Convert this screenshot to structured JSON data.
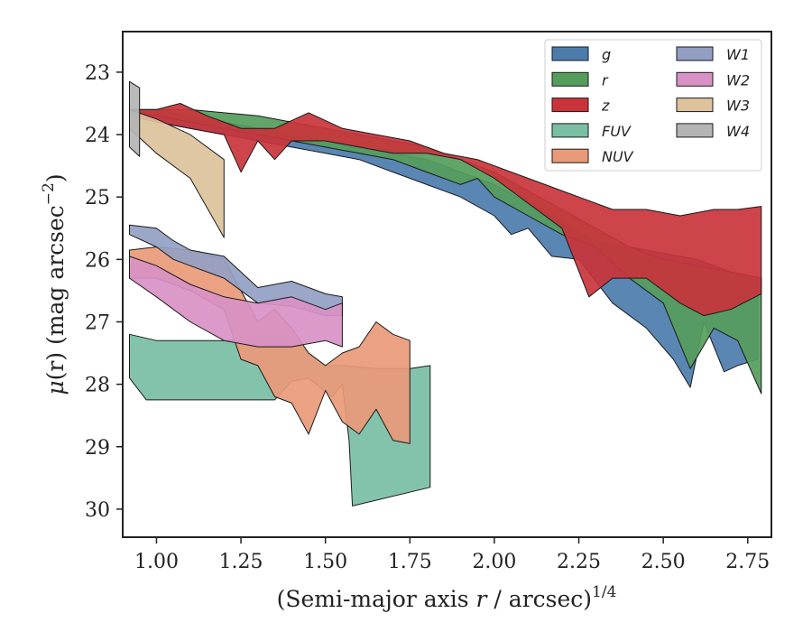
{
  "chart_data": {
    "type": "area",
    "xlabel": "(Semi-major axis r / arcsec)",
    "xlabel_main": "(Semi-major axis ",
    "xlabel_var": "r",
    "xlabel_rest": " / arcsec)",
    "xlabel_sup": "1/4",
    "ylabel_mu": "μ",
    "ylabel_paren_r": "(r) (mag arcsec",
    "ylabel_sup": "−2",
    "ylabel_close": ")",
    "xlim": [
      0.9,
      2.82
    ],
    "ylim": [
      30.45,
      22.35
    ],
    "y_inverted": true,
    "xticks": [
      1.0,
      1.25,
      1.5,
      1.75,
      2.0,
      2.25,
      2.5,
      2.75
    ],
    "xtick_labels": [
      "1.00",
      "1.25",
      "1.50",
      "1.75",
      "2.00",
      "2.25",
      "2.50",
      "2.75"
    ],
    "yticks": [
      23,
      24,
      25,
      26,
      27,
      28,
      29,
      30
    ],
    "ytick_labels": [
      "23",
      "24",
      "25",
      "26",
      "27",
      "28",
      "29",
      "30"
    ],
    "legend_position": "top-right",
    "legend_columns": 2,
    "series": [
      {
        "name": "g",
        "color": "#4c7cac",
        "upper": [
          [
            0.92,
            23.6
          ],
          [
            1.0,
            23.6
          ],
          [
            1.1,
            23.7
          ],
          [
            1.2,
            23.8
          ],
          [
            1.3,
            23.9
          ],
          [
            1.4,
            24.0
          ],
          [
            1.5,
            24.1
          ],
          [
            1.6,
            24.2
          ],
          [
            1.7,
            24.3
          ],
          [
            1.8,
            24.4
          ],
          [
            1.9,
            24.6
          ],
          [
            2.0,
            24.8
          ],
          [
            2.1,
            25.1
          ],
          [
            2.2,
            25.4
          ],
          [
            2.3,
            25.7
          ],
          [
            2.4,
            25.8
          ],
          [
            2.5,
            25.9
          ],
          [
            2.6,
            26.0
          ],
          [
            2.7,
            26.2
          ],
          [
            2.78,
            26.3
          ]
        ],
        "lower": [
          [
            0.92,
            23.7
          ],
          [
            1.0,
            23.8
          ],
          [
            1.1,
            23.9
          ],
          [
            1.2,
            24.0
          ],
          [
            1.3,
            24.1
          ],
          [
            1.4,
            24.2
          ],
          [
            1.5,
            24.3
          ],
          [
            1.6,
            24.4
          ],
          [
            1.7,
            24.6
          ],
          [
            1.8,
            24.8
          ],
          [
            1.9,
            25.0
          ],
          [
            2.0,
            25.3
          ],
          [
            2.05,
            25.6
          ],
          [
            2.1,
            25.5
          ],
          [
            2.17,
            25.95
          ],
          [
            2.25,
            26.0
          ],
          [
            2.35,
            26.7
          ],
          [
            2.45,
            27.1
          ],
          [
            2.53,
            27.6
          ],
          [
            2.58,
            28.05
          ],
          [
            2.62,
            27.0
          ],
          [
            2.68,
            27.8
          ],
          [
            2.72,
            27.7
          ],
          [
            2.78,
            27.6
          ]
        ]
      },
      {
        "name": "r",
        "color": "#559d5c",
        "upper": [
          [
            0.92,
            23.6
          ],
          [
            1.0,
            23.6
          ],
          [
            1.1,
            23.6
          ],
          [
            1.2,
            23.65
          ],
          [
            1.3,
            23.7
          ],
          [
            1.4,
            23.8
          ],
          [
            1.5,
            23.9
          ],
          [
            1.6,
            24.0
          ],
          [
            1.7,
            24.1
          ],
          [
            1.8,
            24.2
          ],
          [
            1.9,
            24.4
          ],
          [
            2.0,
            24.6
          ],
          [
            2.1,
            24.9
          ],
          [
            2.2,
            25.2
          ],
          [
            2.3,
            25.5
          ],
          [
            2.4,
            25.8
          ],
          [
            2.5,
            26.0
          ],
          [
            2.6,
            26.1
          ],
          [
            2.7,
            26.2
          ],
          [
            2.79,
            26.3
          ]
        ],
        "lower": [
          [
            0.92,
            23.65
          ],
          [
            1.0,
            23.7
          ],
          [
            1.1,
            23.8
          ],
          [
            1.2,
            23.9
          ],
          [
            1.3,
            24.0
          ],
          [
            1.4,
            24.1
          ],
          [
            1.5,
            24.2
          ],
          [
            1.6,
            24.3
          ],
          [
            1.7,
            24.4
          ],
          [
            1.8,
            24.6
          ],
          [
            1.9,
            24.8
          ],
          [
            1.95,
            24.7
          ],
          [
            2.0,
            25.0
          ],
          [
            2.1,
            25.3
          ],
          [
            2.2,
            25.6
          ],
          [
            2.3,
            25.8
          ],
          [
            2.4,
            26.3
          ],
          [
            2.5,
            26.7
          ],
          [
            2.58,
            27.75
          ],
          [
            2.65,
            27.1
          ],
          [
            2.72,
            27.3
          ],
          [
            2.79,
            28.15
          ]
        ]
      },
      {
        "name": "z",
        "color": "#c9343b",
        "upper": [
          [
            0.92,
            23.6
          ],
          [
            1.0,
            23.6
          ],
          [
            1.07,
            23.5
          ],
          [
            1.15,
            23.7
          ],
          [
            1.25,
            23.9
          ],
          [
            1.35,
            23.9
          ],
          [
            1.45,
            23.65
          ],
          [
            1.55,
            23.9
          ],
          [
            1.65,
            24.0
          ],
          [
            1.75,
            24.1
          ],
          [
            1.85,
            24.3
          ],
          [
            1.95,
            24.4
          ],
          [
            2.05,
            24.6
          ],
          [
            2.15,
            24.8
          ],
          [
            2.25,
            25.0
          ],
          [
            2.35,
            25.2
          ],
          [
            2.45,
            25.2
          ],
          [
            2.55,
            25.3
          ],
          [
            2.65,
            25.2
          ],
          [
            2.72,
            25.2
          ],
          [
            2.79,
            25.15
          ]
        ],
        "lower": [
          [
            0.92,
            23.7
          ],
          [
            1.0,
            23.8
          ],
          [
            1.1,
            23.9
          ],
          [
            1.2,
            24.0
          ],
          [
            1.25,
            24.6
          ],
          [
            1.3,
            24.1
          ],
          [
            1.35,
            24.4
          ],
          [
            1.4,
            24.1
          ],
          [
            1.5,
            24.1
          ],
          [
            1.6,
            24.2
          ],
          [
            1.7,
            24.3
          ],
          [
            1.8,
            24.3
          ],
          [
            1.9,
            24.4
          ],
          [
            2.0,
            24.7
          ],
          [
            2.1,
            25.1
          ],
          [
            2.2,
            25.5
          ],
          [
            2.28,
            26.6
          ],
          [
            2.35,
            26.3
          ],
          [
            2.45,
            26.3
          ],
          [
            2.55,
            26.7
          ],
          [
            2.62,
            26.9
          ],
          [
            2.7,
            26.8
          ],
          [
            2.79,
            26.55
          ]
        ]
      },
      {
        "name": "FUV",
        "color": "#7abea4",
        "upper": [
          [
            0.92,
            27.2
          ],
          [
            1.0,
            27.3
          ],
          [
            1.2,
            27.3
          ],
          [
            1.3,
            27.25
          ],
          [
            1.4,
            27.25
          ],
          [
            1.45,
            27.5
          ],
          [
            1.5,
            27.7
          ],
          [
            1.55,
            27.7
          ],
          [
            1.65,
            27.75
          ],
          [
            1.75,
            27.75
          ],
          [
            1.81,
            27.7
          ]
        ],
        "lower": [
          [
            0.92,
            27.9
          ],
          [
            0.97,
            28.25
          ],
          [
            1.2,
            28.25
          ],
          [
            1.35,
            28.25
          ],
          [
            1.4,
            27.95
          ],
          [
            1.45,
            27.9
          ],
          [
            1.52,
            28.2
          ],
          [
            1.55,
            28.0
          ],
          [
            1.57,
            28.9
          ],
          [
            1.58,
            29.95
          ],
          [
            1.81,
            29.65
          ]
        ]
      },
      {
        "name": "NUV",
        "color": "#e99a78",
        "upper": [
          [
            0.92,
            25.85
          ],
          [
            1.0,
            25.8
          ],
          [
            1.1,
            25.85
          ],
          [
            1.2,
            26.0
          ],
          [
            1.25,
            26.5
          ],
          [
            1.3,
            27.0
          ],
          [
            1.35,
            26.8
          ],
          [
            1.4,
            27.1
          ],
          [
            1.45,
            27.5
          ],
          [
            1.5,
            27.7
          ],
          [
            1.55,
            27.5
          ],
          [
            1.6,
            27.4
          ],
          [
            1.65,
            27.0
          ],
          [
            1.7,
            27.2
          ],
          [
            1.75,
            27.3
          ]
        ],
        "lower": [
          [
            0.92,
            26.3
          ],
          [
            1.0,
            26.3
          ],
          [
            1.1,
            26.5
          ],
          [
            1.2,
            26.8
          ],
          [
            1.25,
            27.6
          ],
          [
            1.3,
            27.7
          ],
          [
            1.35,
            28.2
          ],
          [
            1.4,
            28.3
          ],
          [
            1.45,
            28.8
          ],
          [
            1.5,
            28.1
          ],
          [
            1.55,
            28.6
          ],
          [
            1.6,
            28.8
          ],
          [
            1.65,
            28.4
          ],
          [
            1.7,
            28.9
          ],
          [
            1.75,
            28.95
          ]
        ]
      },
      {
        "name": "W1",
        "color": "#929fc3",
        "upper": [
          [
            0.92,
            25.45
          ],
          [
            1.0,
            25.5
          ],
          [
            1.05,
            25.7
          ],
          [
            1.1,
            25.85
          ],
          [
            1.2,
            25.95
          ],
          [
            1.3,
            26.45
          ],
          [
            1.4,
            26.35
          ],
          [
            1.5,
            26.55
          ],
          [
            1.55,
            26.6
          ]
        ],
        "lower": [
          [
            0.92,
            25.6
          ],
          [
            1.0,
            25.8
          ],
          [
            1.05,
            26.0
          ],
          [
            1.1,
            26.1
          ],
          [
            1.2,
            26.3
          ],
          [
            1.3,
            26.7
          ],
          [
            1.4,
            26.75
          ],
          [
            1.5,
            26.9
          ],
          [
            1.55,
            26.9
          ]
        ]
      },
      {
        "name": "W2",
        "color": "#d891c4",
        "upper": [
          [
            0.92,
            25.95
          ],
          [
            1.0,
            26.1
          ],
          [
            1.1,
            26.4
          ],
          [
            1.2,
            26.6
          ],
          [
            1.3,
            26.7
          ],
          [
            1.4,
            26.6
          ],
          [
            1.5,
            26.8
          ],
          [
            1.55,
            26.7
          ]
        ],
        "lower": [
          [
            0.92,
            26.3
          ],
          [
            1.0,
            26.6
          ],
          [
            1.1,
            27.0
          ],
          [
            1.2,
            27.3
          ],
          [
            1.3,
            27.4
          ],
          [
            1.4,
            27.4
          ],
          [
            1.5,
            27.3
          ],
          [
            1.55,
            27.4
          ]
        ]
      },
      {
        "name": "W3",
        "color": "#ddc29c",
        "upper": [
          [
            0.92,
            23.6
          ],
          [
            1.0,
            23.75
          ],
          [
            1.1,
            24.0
          ],
          [
            1.2,
            24.4
          ]
        ],
        "lower": [
          [
            0.92,
            23.9
          ],
          [
            1.0,
            24.3
          ],
          [
            1.1,
            24.7
          ],
          [
            1.2,
            25.65
          ]
        ]
      },
      {
        "name": "W4",
        "color": "#b4b4b4",
        "upper": [
          [
            0.92,
            23.15
          ],
          [
            0.95,
            23.25
          ]
        ],
        "lower": [
          [
            0.92,
            24.2
          ],
          [
            0.95,
            24.35
          ]
        ]
      }
    ]
  }
}
